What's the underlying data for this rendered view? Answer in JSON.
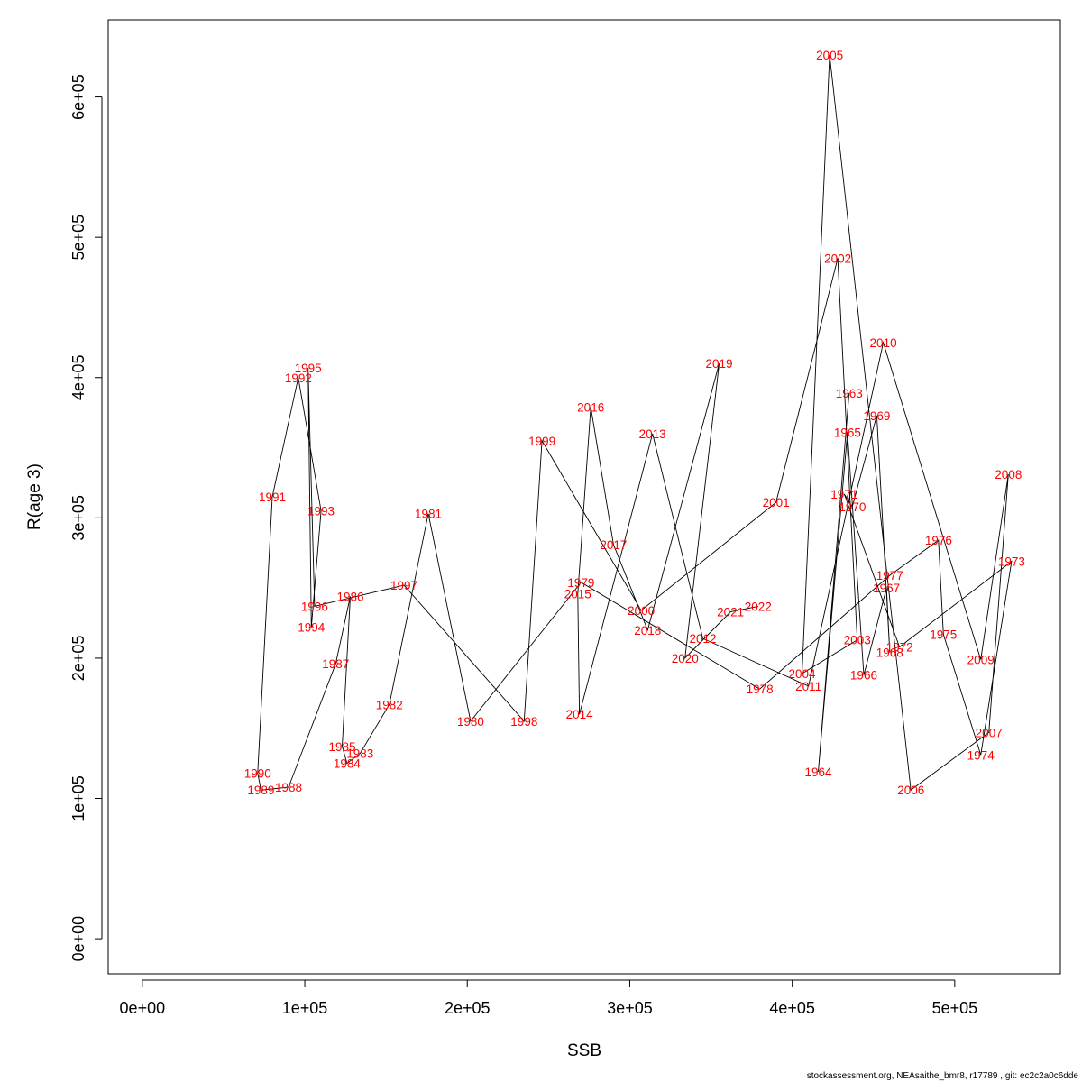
{
  "footer": "stockassessment.org, NEAsaithe_bmr8, r17789 , git: ec2c2a0c6dde",
  "chart_data": {
    "type": "line",
    "xlabel": "SSB",
    "ylabel": "R(age 3)",
    "xlim": [
      -21000,
      565000
    ],
    "ylim": [
      -25000,
      655000
    ],
    "xticks": [
      0,
      100000,
      200000,
      300000,
      400000,
      500000
    ],
    "xtick_labels": [
      "0e+00",
      "1e+05",
      "2e+05",
      "3e+05",
      "4e+05",
      "5e+05"
    ],
    "yticks": [
      0,
      100000,
      200000,
      300000,
      400000,
      500000,
      600000
    ],
    "ytick_labels": [
      "0e+00",
      "1e+05",
      "2e+05",
      "3e+05",
      "4e+05",
      "5e+05",
      "6e+05"
    ],
    "line_color": "#000000",
    "label_color": "#ff0000",
    "points": [
      {
        "year": "1963",
        "x": 435000,
        "y": 389000
      },
      {
        "year": "1964",
        "x": 416000,
        "y": 119000
      },
      {
        "year": "1965",
        "x": 434000,
        "y": 361000
      },
      {
        "year": "1966",
        "x": 444000,
        "y": 188000
      },
      {
        "year": "1967",
        "x": 458000,
        "y": 250000
      },
      {
        "year": "1968",
        "x": 460000,
        "y": 204000
      },
      {
        "year": "1969",
        "x": 452000,
        "y": 373000
      },
      {
        "year": "1970",
        "x": 437000,
        "y": 308000
      },
      {
        "year": "1971",
        "x": 432000,
        "y": 317000
      },
      {
        "year": "1972",
        "x": 466000,
        "y": 208000
      },
      {
        "year": "1973",
        "x": 535000,
        "y": 269000
      },
      {
        "year": "1974",
        "x": 516000,
        "y": 131000
      },
      {
        "year": "1975",
        "x": 493000,
        "y": 217000
      },
      {
        "year": "1976",
        "x": 490000,
        "y": 284000
      },
      {
        "year": "1977",
        "x": 460000,
        "y": 259000
      },
      {
        "year": "1978",
        "x": 380000,
        "y": 178000
      },
      {
        "year": "1979",
        "x": 270000,
        "y": 254000
      },
      {
        "year": "1980",
        "x": 202000,
        "y": 155000
      },
      {
        "year": "1981",
        "x": 176000,
        "y": 303000
      },
      {
        "year": "1982",
        "x": 152000,
        "y": 167000
      },
      {
        "year": "1983",
        "x": 134000,
        "y": 132000
      },
      {
        "year": "1984",
        "x": 126000,
        "y": 125000
      },
      {
        "year": "1985",
        "x": 123000,
        "y": 137000
      },
      {
        "year": "1986",
        "x": 128000,
        "y": 244000
      },
      {
        "year": "1987",
        "x": 119000,
        "y": 196000
      },
      {
        "year": "1988",
        "x": 90000,
        "y": 108000
      },
      {
        "year": "1989",
        "x": 73000,
        "y": 106000
      },
      {
        "year": "1990",
        "x": 71000,
        "y": 118000
      },
      {
        "year": "1991",
        "x": 80000,
        "y": 315000
      },
      {
        "year": "1992",
        "x": 96000,
        "y": 400000
      },
      {
        "year": "1993",
        "x": 110000,
        "y": 305000
      },
      {
        "year": "1994",
        "x": 104000,
        "y": 222000
      },
      {
        "year": "1995",
        "x": 102000,
        "y": 407000
      },
      {
        "year": "1996",
        "x": 106000,
        "y": 237000
      },
      {
        "year": "1997",
        "x": 161000,
        "y": 252000
      },
      {
        "year": "1998",
        "x": 235000,
        "y": 155000
      },
      {
        "year": "1999",
        "x": 246000,
        "y": 355000
      },
      {
        "year": "2000",
        "x": 307000,
        "y": 234000
      },
      {
        "year": "2001",
        "x": 390000,
        "y": 311000
      },
      {
        "year": "2002",
        "x": 428000,
        "y": 485000
      },
      {
        "year": "2003",
        "x": 440000,
        "y": 213000
      },
      {
        "year": "2004",
        "x": 406000,
        "y": 189000
      },
      {
        "year": "2005",
        "x": 423000,
        "y": 630000
      },
      {
        "year": "2006",
        "x": 473000,
        "y": 106000
      },
      {
        "year": "2007",
        "x": 521000,
        "y": 147000
      },
      {
        "year": "2008",
        "x": 533000,
        "y": 331000
      },
      {
        "year": "2009",
        "x": 516000,
        "y": 199000
      },
      {
        "year": "2010",
        "x": 456000,
        "y": 425000
      },
      {
        "year": "2011",
        "x": 410000,
        "y": 180000
      },
      {
        "year": "2012",
        "x": 345000,
        "y": 214000
      },
      {
        "year": "2013",
        "x": 314000,
        "y": 360000
      },
      {
        "year": "2014",
        "x": 269000,
        "y": 160000
      },
      {
        "year": "2015",
        "x": 268000,
        "y": 246000
      },
      {
        "year": "2016",
        "x": 276000,
        "y": 379000
      },
      {
        "year": "2017",
        "x": 290000,
        "y": 281000
      },
      {
        "year": "2018",
        "x": 311000,
        "y": 220000
      },
      {
        "year": "2019",
        "x": 355000,
        "y": 410000
      },
      {
        "year": "2020",
        "x": 334000,
        "y": 200000
      },
      {
        "year": "2021",
        "x": 362000,
        "y": 233000
      },
      {
        "year": "2022",
        "x": 379000,
        "y": 237000
      }
    ]
  }
}
